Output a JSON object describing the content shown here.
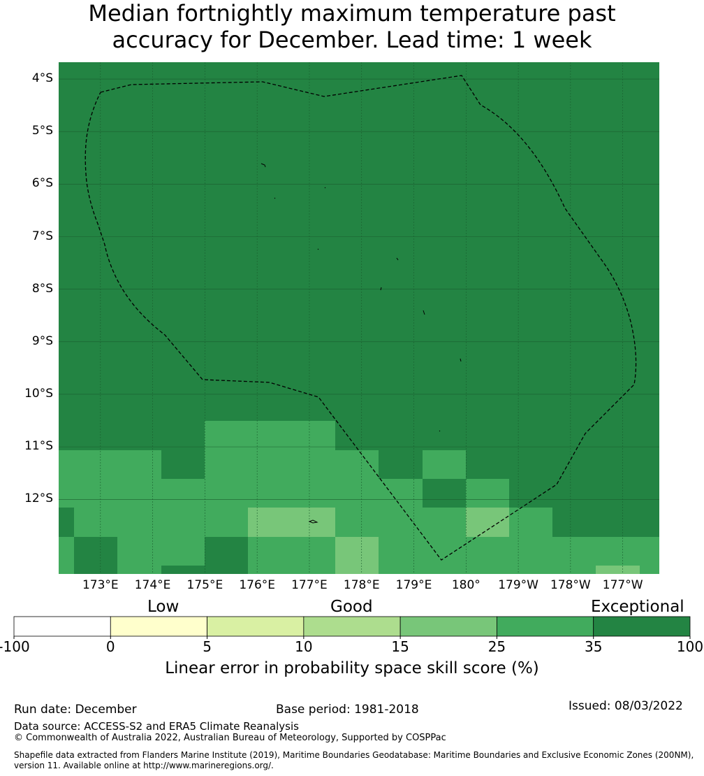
{
  "title_lines": [
    "Median fortnightly maximum temperature past",
    "accuracy for December. Lead time: 1 week"
  ],
  "map": {
    "lat_labels": [
      "4°S",
      "5°S",
      "6°S",
      "7°S",
      "8°S",
      "9°S",
      "10°S",
      "11°S",
      "12°S"
    ],
    "lon_labels": [
      "173°E",
      "174°E",
      "175°E",
      "176°E",
      "177°E",
      "178°E",
      "179°E",
      "180°",
      "179°W",
      "178°W",
      "177°W"
    ],
    "lon_range_deg_east": [
      172.2,
      183.7
    ],
    "lat_range_deg": [
      -13.42,
      -3.68
    ],
    "grid_step_deg": 0.83,
    "fill_value_rows": "Grid cells north of ~10.6°S are all in the 35–100 band; southern rows mix the 15–25, 25–35 and 35–100 bands",
    "boundary": "Tuvalu Exclusive Economic Zone (dashed outline)"
  },
  "colorbar": {
    "categories": [
      "Low",
      "Good",
      "Exceptional"
    ],
    "ticks": [
      "-100",
      "0",
      "5",
      "10",
      "15",
      "25",
      "35",
      "100"
    ],
    "colors": [
      "#ffffff",
      "#ffffcc",
      "#d9f0a3",
      "#addd8e",
      "#78c679",
      "#41ab5d",
      "#238443"
    ],
    "label": "Linear error in probability space skill score (%)"
  },
  "footer": {
    "run_date": "Run date: December",
    "base_period": "Base period: 1981-2018",
    "issued": "Issued: 08/03/2022",
    "data_source": "Data source: ACCESS-S2 and ERA5 Climate Reanalysis",
    "copyright": "© Commonwealth of Australia 2022, Australian Bureau of Meteorology, Supported by COSPPac",
    "shapefile": "Shapefile data extracted from Flanders Marine Institute (2019), Maritime Boundaries Geodatabase: Maritime Boundaries and Exclusive Economic Zones (200NM), version 11. Available online at http://www.marineregions.org/."
  }
}
